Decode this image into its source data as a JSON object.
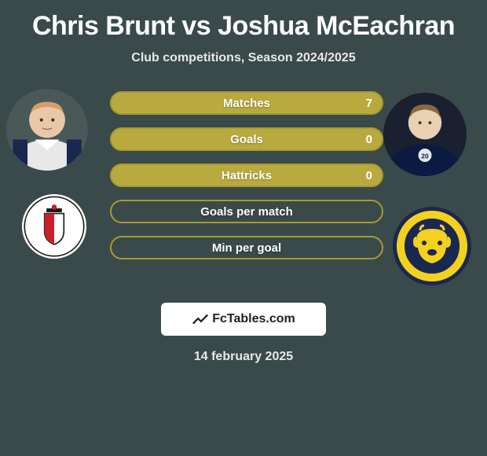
{
  "title": "Chris Brunt vs Joshua McEachran",
  "subtitle": "Club competitions, Season 2024/2025",
  "date": "14 february 2025",
  "logo_text": "FcTables.com",
  "colors": {
    "bg": "#3a4a4a",
    "bar_border": "#a89a2e",
    "bar_fill": "#b8aa3e",
    "text": "#ffffff"
  },
  "stats": [
    {
      "label": "Matches",
      "value": "7",
      "fill_pct": 100
    },
    {
      "label": "Goals",
      "value": "0",
      "fill_pct": 100
    },
    {
      "label": "Hattricks",
      "value": "0",
      "fill_pct": 100
    },
    {
      "label": "Goals per match",
      "value": "",
      "fill_pct": 0
    },
    {
      "label": "Min per goal",
      "value": "",
      "fill_pct": 0
    }
  ],
  "player_left": {
    "skin": "#e8c8a8",
    "hair": "#d4a068",
    "shirt_main": "#e8e8e8",
    "shirt_stripe": "#1a2850"
  },
  "player_right": {
    "skin": "#e8d0b0",
    "hair": "#8a6840",
    "shirt_main": "#0a1a40",
    "badge": "#ffffff"
  },
  "crest_left": {
    "bg": "#ffffff",
    "red": "#c8202c",
    "dark": "#1a1a1a"
  },
  "crest_right": {
    "bg": "#1a2850",
    "accent": "#f4d020",
    "outline": "#1a2850"
  }
}
